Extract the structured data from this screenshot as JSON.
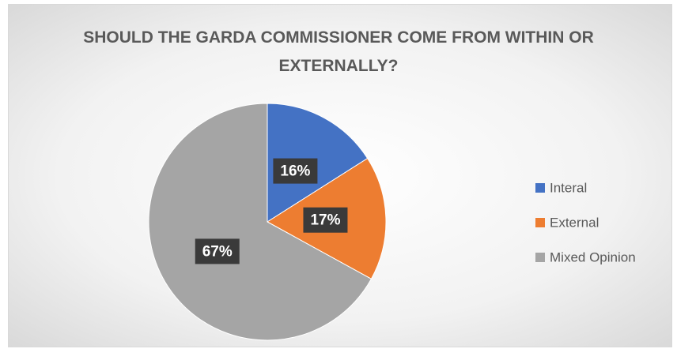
{
  "chart_data": {
    "type": "pie",
    "title": "SHOULD THE GARDA COMMISSIONER COME FROM WITHIN OR EXTERNALLY?",
    "categories": [
      "Interal",
      "External",
      "Mixed Opinion"
    ],
    "values": [
      16,
      17,
      67
    ],
    "value_labels": [
      "16%",
      "17%",
      "67%"
    ],
    "colors": [
      "#4472c4",
      "#ed7d31",
      "#a5a5a5"
    ],
    "legend": "right"
  }
}
